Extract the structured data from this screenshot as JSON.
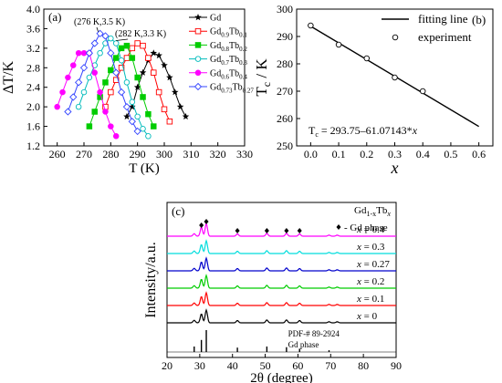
{
  "chart_data": [
    {
      "panel": "(a)",
      "type": "line",
      "xlabel": "T (K)",
      "ylabel": "ΔT/K",
      "xlim": [
        255,
        330
      ],
      "ylim": [
        1.2,
        4.0
      ],
      "xticks": [
        260,
        270,
        280,
        290,
        300,
        310,
        320,
        330
      ],
      "yticks": [
        1.2,
        1.6,
        2.0,
        2.4,
        2.8,
        3.2,
        3.6,
        4.0
      ],
      "legend": "top-right",
      "annotations": [
        {
          "text": "(276 K,3.5 K)",
          "x": 276,
          "y": 3.5
        },
        {
          "text": "(282 K,3.3 K)",
          "x": 282,
          "y": 3.3
        }
      ],
      "series": [
        {
          "name": "Gd",
          "base": "Gd",
          "sub1": "",
          "mid": "",
          "sub2": "",
          "color": "#000000",
          "marker": "star",
          "x": [
            286,
            288,
            290,
            292,
            294,
            296,
            298,
            300,
            302,
            304,
            306,
            308
          ],
          "y": [
            1.8,
            2.0,
            2.4,
            2.7,
            2.95,
            3.1,
            3.05,
            2.85,
            2.6,
            2.3,
            2.0,
            1.8
          ]
        },
        {
          "name": "Gd0.9Tb0.1",
          "base": "Gd",
          "sub1": "0.9",
          "mid": "Tb",
          "sub2": "0.1",
          "color": "#ff0000",
          "marker": "square-open",
          "x": [
            278,
            280,
            282,
            284,
            286,
            288,
            290,
            292,
            294,
            296,
            298,
            300,
            302
          ],
          "y": [
            2.0,
            2.3,
            2.55,
            2.8,
            3.0,
            3.2,
            3.3,
            3.25,
            3.0,
            2.7,
            2.3,
            1.95,
            1.7
          ]
        },
        {
          "name": "Gd0.8Tb0.2",
          "base": "Gd",
          "sub1": "0.8",
          "mid": "Tb",
          "sub2": "0.2",
          "color": "#00cc00",
          "marker": "square",
          "x": [
            272,
            274,
            276,
            278,
            280,
            282,
            284,
            286,
            288,
            290,
            292,
            294,
            296
          ],
          "y": [
            1.6,
            1.9,
            2.2,
            2.5,
            2.75,
            3.0,
            3.2,
            3.25,
            3.0,
            2.6,
            2.2,
            1.85,
            1.6
          ]
        },
        {
          "name": "Gd0.7Tb0.3",
          "base": "Gd",
          "sub1": "0.7",
          "mid": "Tb",
          "sub2": "0.3",
          "color": "#00bbbb",
          "marker": "circle-open",
          "x": [
            268,
            270,
            272,
            274,
            276,
            278,
            280,
            282,
            284,
            286,
            288,
            290,
            292,
            294
          ],
          "y": [
            2.0,
            2.3,
            2.6,
            2.85,
            3.1,
            3.3,
            3.4,
            3.3,
            2.95,
            2.5,
            2.1,
            1.8,
            1.55,
            1.4
          ]
        },
        {
          "name": "Gd0.6Tb0.4",
          "base": "Gd",
          "sub1": "0.6",
          "mid": "Tb",
          "sub2": "0.4",
          "color": "#ff00ff",
          "marker": "circle",
          "x": [
            260,
            262,
            264,
            266,
            268,
            270,
            272,
            274,
            276,
            278,
            280,
            282
          ],
          "y": [
            2.0,
            2.3,
            2.6,
            2.85,
            3.1,
            3.1,
            3.1,
            2.7,
            2.3,
            1.9,
            1.6,
            1.4
          ]
        },
        {
          "name": "Gd0.73Tb0.27",
          "base": "Gd",
          "sub1": "0.73",
          "mid": "Tb",
          "sub2": "0.27",
          "color": "#3344ff",
          "marker": "diamond-open",
          "x": [
            264,
            266,
            268,
            270,
            272,
            274,
            276,
            278,
            280,
            282,
            284,
            286,
            288,
            290
          ],
          "y": [
            1.9,
            2.2,
            2.5,
            2.8,
            3.1,
            3.3,
            3.5,
            3.45,
            3.1,
            2.7,
            2.3,
            2.0,
            1.7,
            1.5
          ]
        }
      ]
    },
    {
      "panel": "(b)",
      "type": "scatter",
      "xlabel": "x",
      "ylabel_base": "T",
      "ylabel_sub": "c",
      "ylabel_rest": " / K",
      "xlim": [
        -0.05,
        0.65
      ],
      "ylim": [
        250,
        300
      ],
      "xticks": [
        0.0,
        0.1,
        0.2,
        0.3,
        0.4,
        0.5,
        0.6
      ],
      "yticks": [
        250,
        260,
        270,
        280,
        290,
        300
      ],
      "legend": "top-right",
      "equation_base": "T",
      "equation_sub": "c",
      "equation_rest": " = 293.75–61.07143*",
      "equation_var": "x",
      "fit": {
        "name": "fitting line",
        "intercept": 293.75,
        "slope": -61.07143,
        "x": [
          0.0,
          0.6
        ]
      },
      "experiment": {
        "name": "experiment",
        "x": [
          0.0,
          0.1,
          0.2,
          0.3,
          0.4
        ],
        "y": [
          294,
          287,
          282,
          275,
          270
        ]
      }
    },
    {
      "panel": "(c)",
      "type": "line",
      "xlabel": "2θ (degree)",
      "ylabel": "Intensity/a.u.",
      "xlim": [
        20,
        90
      ],
      "xticks": [
        20,
        30,
        40,
        50,
        60,
        70,
        80,
        90
      ],
      "legend_title_base": "Gd",
      "legend_title_sub": "1-x",
      "legend_title_mid": "Tb",
      "legend_title_sub2": "x",
      "marker_label": "- Gd phase",
      "ref_labels": [
        "PDF-# 89-2924",
        "Gd phase"
      ],
      "peak_markers_2theta": [
        30.5,
        32.0,
        41.5,
        50.5,
        56.5,
        60.5
      ],
      "peaks_2theta": [
        28.3,
        30.5,
        32.0,
        41.5,
        50.5,
        56.5,
        60.5,
        69.5,
        72.0
      ],
      "peaks_height": [
        0.2,
        0.7,
        1.0,
        0.18,
        0.22,
        0.22,
        0.18,
        0.08,
        0.08
      ],
      "ref_lines_2theta": [
        28.3,
        30.5,
        32.0,
        41.5,
        50.5,
        56.5,
        60.5,
        69.5
      ],
      "ref_lines_height": [
        0.25,
        0.55,
        1.0,
        0.2,
        0.25,
        0.22,
        0.15,
        0.08
      ],
      "series": [
        {
          "name": "x = 0",
          "label_x": "x",
          "label_rest": " = 0",
          "color": "#000000"
        },
        {
          "name": "x = 0.1",
          "label_x": "x",
          "label_rest": " = 0.1",
          "color": "#ff0000"
        },
        {
          "name": "x = 0.2",
          "label_x": "x",
          "label_rest": " = 0.2",
          "color": "#00cc00"
        },
        {
          "name": "x = 0.27",
          "label_x": "x",
          "label_rest": " = 0.27",
          "color": "#0000cc"
        },
        {
          "name": "x = 0.3",
          "label_x": "x",
          "label_rest": " = 0.3",
          "color": "#00dddd"
        },
        {
          "name": "x = 0.4",
          "label_x": "x",
          "label_rest": " = 0.4",
          "color": "#ff00ff"
        }
      ]
    }
  ]
}
